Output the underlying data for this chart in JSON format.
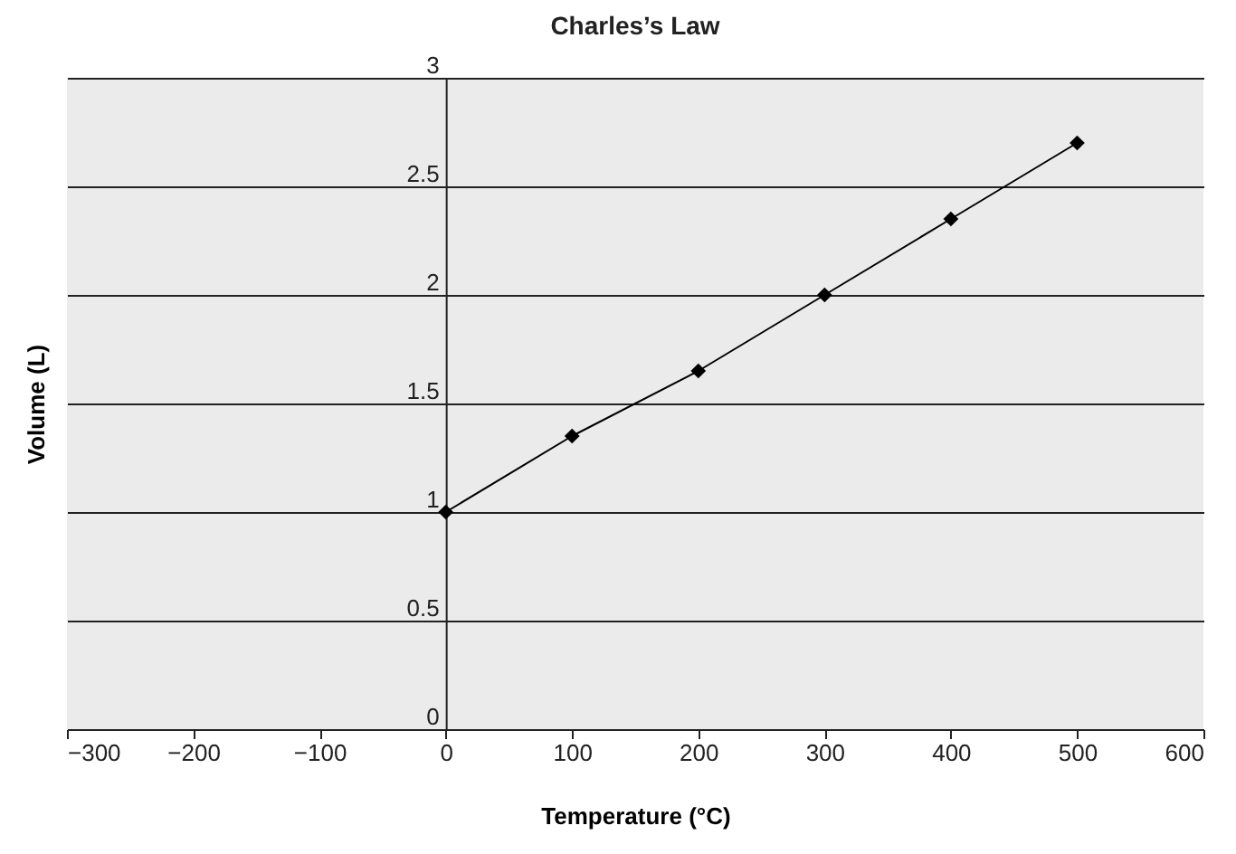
{
  "chart_data": {
    "type": "line",
    "title": "Charles’s Law",
    "xlabel": "Temperature (°C)",
    "ylabel": "Volume (L)",
    "x": [
      0,
      100,
      200,
      300,
      400,
      500
    ],
    "series": [
      {
        "color": "#000000",
        "values": [
          1,
          1.35,
          1.65,
          2.0,
          2.35,
          2.7
        ]
      }
    ],
    "xlim": [
      -300,
      600
    ],
    "xticks": [
      -300,
      -200,
      -100,
      0,
      100,
      200,
      300,
      400,
      500,
      600
    ],
    "ylim": [
      0,
      3
    ],
    "yticks": [
      0,
      0.5,
      1,
      1.5,
      2,
      2.5,
      3
    ],
    "grid": "y",
    "marker": "diamond",
    "line_style": "solid"
  }
}
